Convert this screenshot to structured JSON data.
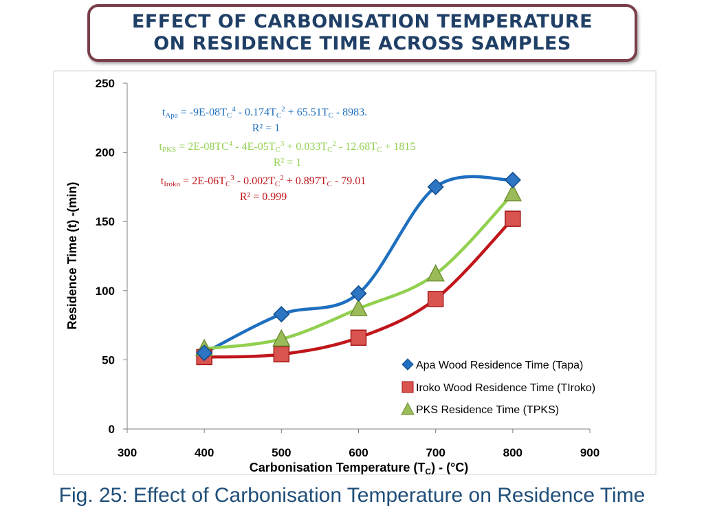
{
  "header": {
    "title_line1": "EFFECT OF CARBONISATION TEMPERATURE",
    "title_line2": "ON RESIDENCE TIME ACROSS SAMPLES"
  },
  "caption": "Fig. 25: Effect of Carbonisation Temperature on Residence Time",
  "colors": {
    "apa": "#1f6fbf",
    "iroko": "#c0161b",
    "pks": "#92d050",
    "border": "#7a3e48"
  },
  "equations": {
    "apa_line1": "tApa = -9E-08TC4 - 0.174TC2 + 65.51TC - 8983.",
    "apa_line2": "R² = 1",
    "pks_line1": "tPKS = 2E-08TC4 - 4E-05TC3 + 0.033TC2 - 12.68TC + 1815",
    "pks_line2": "R² = 1",
    "iroko_line1": "tIroko = 2E-06TC3 - 0.002TC2 + 0.897TC - 79.01",
    "iroko_line2": "R² = 0.999"
  },
  "chart_data": {
    "type": "scatter",
    "xlabel": "Carbonisation Temperature (TC) - (°C)",
    "ylabel": "Residence Time (t) -(min)",
    "xlim": [
      300,
      900
    ],
    "ylim": [
      0,
      250
    ],
    "xticks": [
      300,
      400,
      500,
      600,
      700,
      800,
      900
    ],
    "yticks": [
      0,
      50,
      100,
      150,
      200,
      250
    ],
    "grid": false,
    "legend_position": "bottom-right",
    "series": [
      {
        "name": "Apa Wood Residence Time (Tapa)",
        "marker": "diamond",
        "x": [
          400,
          500,
          600,
          700,
          800
        ],
        "y": [
          55,
          83,
          98,
          175,
          180
        ]
      },
      {
        "name": "Iroko Wood Residence Time (TIroko)",
        "marker": "square",
        "x": [
          400,
          500,
          600,
          700,
          800
        ],
        "y": [
          52,
          54,
          66,
          94,
          152
        ]
      },
      {
        "name": "PKS Residence Time (TPKS)",
        "marker": "triangle",
        "x": [
          400,
          500,
          600,
          700,
          800
        ],
        "y": [
          58,
          65,
          87,
          112,
          170
        ]
      }
    ]
  }
}
